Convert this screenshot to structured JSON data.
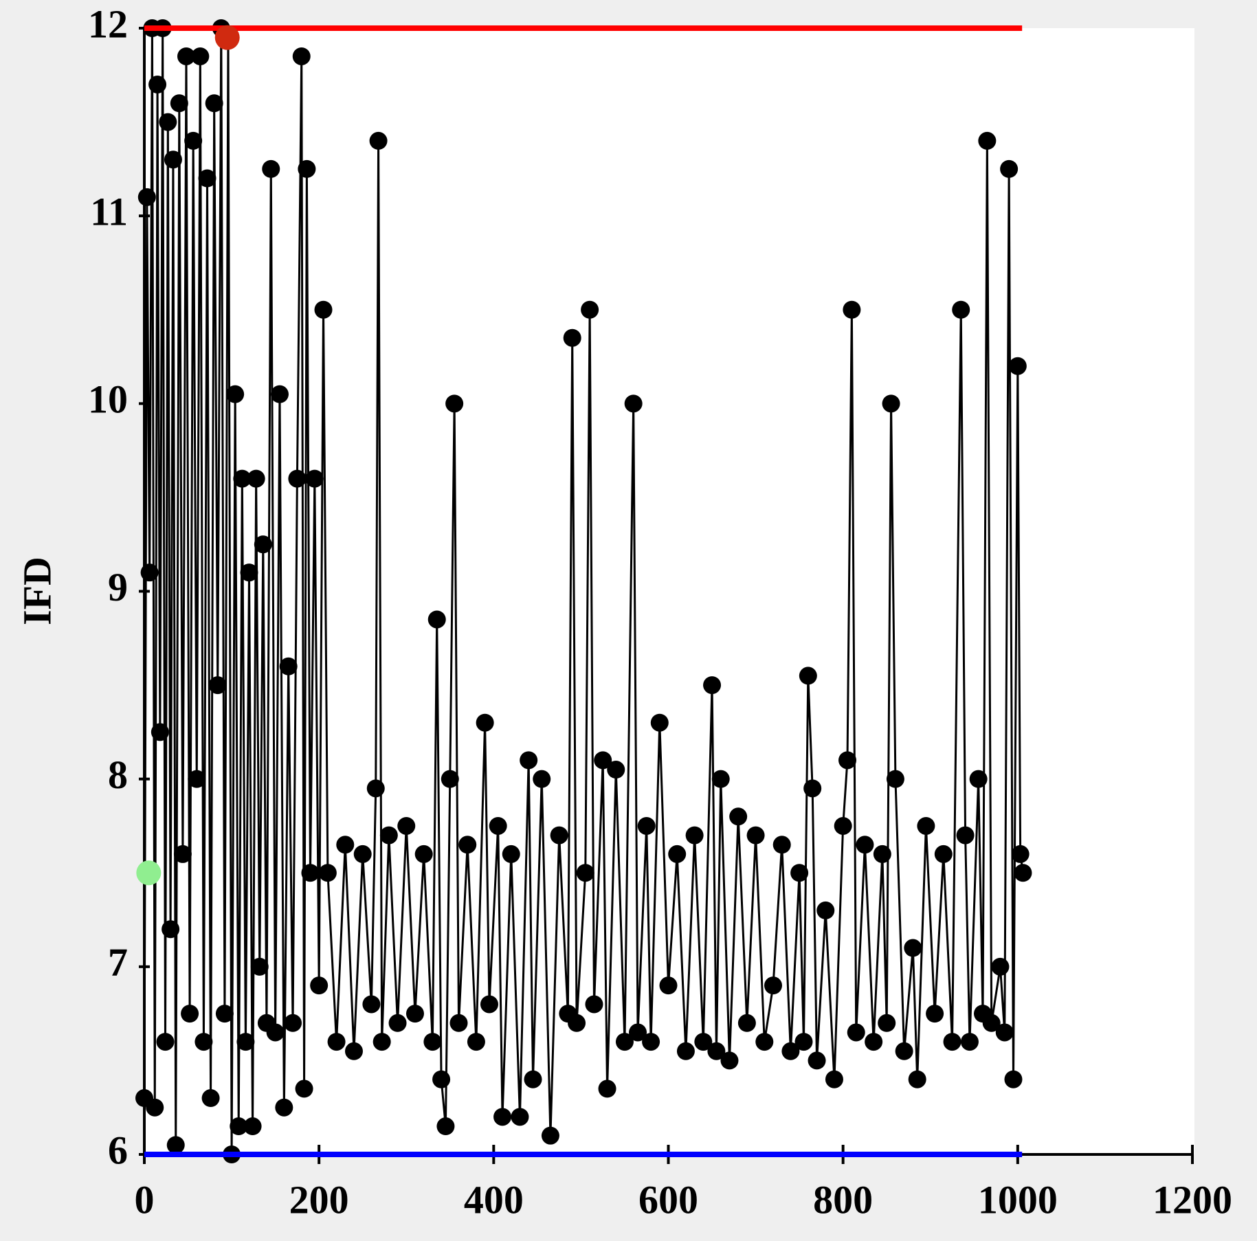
{
  "chart_data": {
    "type": "line",
    "ylabel": "IFD",
    "xlim": [
      0,
      1200
    ],
    "ylim": [
      6,
      12
    ],
    "xticks": [
      0,
      200,
      400,
      600,
      800,
      1000,
      1200
    ],
    "yticks": [
      6,
      7,
      8,
      9,
      10,
      11,
      12
    ],
    "series": [
      {
        "color": "#000000",
        "x": [
          0,
          3,
          6,
          9,
          12,
          15,
          18,
          21,
          24,
          27,
          30,
          33,
          36,
          40,
          44,
          48,
          52,
          56,
          60,
          64,
          68,
          72,
          76,
          80,
          84,
          88,
          92,
          96,
          100,
          104,
          108,
          112,
          116,
          120,
          124,
          128,
          132,
          136,
          140,
          145,
          150,
          155,
          160,
          165,
          170,
          175,
          180,
          183,
          186,
          190,
          195,
          200,
          205,
          210,
          220,
          230,
          240,
          250,
          260,
          265,
          268,
          272,
          280,
          290,
          300,
          310,
          320,
          330,
          335,
          340,
          345,
          350,
          355,
          360,
          370,
          380,
          390,
          395,
          405,
          410,
          420,
          430,
          440,
          445,
          455,
          465,
          475,
          485,
          490,
          495,
          505,
          510,
          515,
          525,
          530,
          540,
          550,
          560,
          565,
          575,
          580,
          590,
          600,
          610,
          620,
          630,
          640,
          650,
          655,
          660,
          670,
          680,
          690,
          700,
          710,
          720,
          730,
          740,
          750,
          755,
          760,
          765,
          770,
          780,
          790,
          800,
          805,
          810,
          815,
          825,
          835,
          845,
          850,
          855,
          860,
          870,
          880,
          885,
          895,
          905,
          915,
          925,
          935,
          940,
          945,
          955,
          960,
          965,
          970,
          980,
          985,
          990,
          995,
          1000,
          1003,
          1006
        ],
        "values": [
          6.3,
          11.1,
          9.1,
          12.0,
          6.25,
          11.7,
          8.25,
          12.0,
          6.6,
          11.5,
          7.2,
          11.3,
          6.05,
          11.6,
          7.6,
          11.85,
          6.75,
          11.4,
          8.0,
          11.85,
          6.6,
          11.2,
          6.3,
          11.6,
          8.5,
          12.0,
          6.75,
          11.95,
          6.0,
          10.05,
          6.15,
          9.6,
          6.6,
          9.1,
          6.15,
          9.6,
          7.0,
          9.25,
          6.7,
          11.25,
          6.65,
          10.05,
          6.25,
          8.6,
          6.7,
          9.6,
          11.85,
          6.35,
          11.25,
          7.5,
          9.6,
          6.9,
          10.5,
          7.5,
          6.6,
          7.65,
          6.55,
          7.6,
          6.8,
          7.95,
          11.4,
          6.6,
          7.7,
          6.7,
          7.75,
          6.75,
          7.6,
          6.6,
          8.85,
          6.4,
          6.15,
          8.0,
          10.0,
          6.7,
          7.65,
          6.6,
          8.3,
          6.8,
          7.75,
          6.2,
          7.6,
          6.2,
          8.1,
          6.4,
          8.0,
          6.1,
          7.7,
          6.75,
          10.35,
          6.7,
          7.5,
          10.5,
          6.8,
          8.1,
          6.35,
          8.05,
          6.6,
          10.0,
          6.65,
          7.75,
          6.6,
          8.3,
          6.9,
          7.6,
          6.55,
          7.7,
          6.6,
          8.5,
          6.55,
          8.0,
          6.5,
          7.8,
          6.7,
          7.7,
          6.6,
          6.9,
          7.65,
          6.55,
          7.5,
          6.6,
          8.55,
          7.95,
          6.5,
          7.3,
          6.4,
          7.75,
          8.1,
          10.5,
          6.65,
          7.65,
          6.6,
          7.6,
          6.7,
          10.0,
          8.0,
          6.55,
          7.1,
          6.4,
          7.75,
          6.75,
          7.6,
          6.6,
          10.5,
          7.7,
          6.6,
          8.0,
          6.75,
          11.4,
          6.7,
          7.0,
          6.65,
          11.25,
          6.4,
          10.2,
          7.6,
          7.5
        ]
      }
    ],
    "reference_lines": [
      {
        "value": 12,
        "x": [
          0,
          1005
        ],
        "color": "#ff0000"
      },
      {
        "value": 6,
        "x": [
          0,
          1005
        ],
        "color": "#0000ff"
      }
    ],
    "highlights": [
      {
        "x": 5,
        "value": 7.5,
        "color": "#90ee90"
      },
      {
        "x": 95,
        "value": 11.95,
        "color": "#d02a10"
      }
    ]
  }
}
